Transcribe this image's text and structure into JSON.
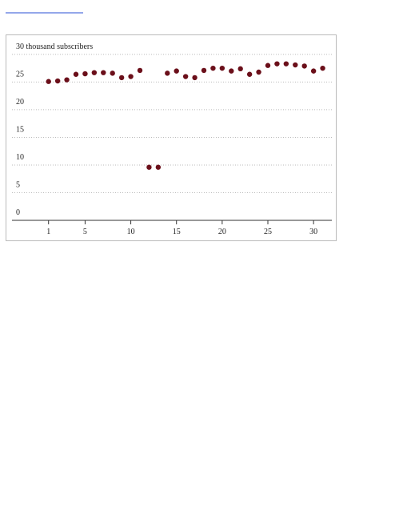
{
  "chart_data": {
    "type": "scatter",
    "x": [
      1,
      2,
      3,
      4,
      5,
      6,
      7,
      8,
      9,
      10,
      11,
      12,
      13,
      14,
      15,
      16,
      17,
      18,
      19,
      20,
      21,
      22,
      23,
      24,
      25,
      26,
      27,
      28,
      29,
      30,
      31
    ],
    "values": [
      25.1,
      25.2,
      25.4,
      26.4,
      26.5,
      26.7,
      26.7,
      26.6,
      25.8,
      26.0,
      27.1,
      9.6,
      9.6,
      26.6,
      27.0,
      26.0,
      25.8,
      27.1,
      27.5,
      27.5,
      27.0,
      27.4,
      26.4,
      26.8,
      28.0,
      28.3,
      28.3,
      28.1,
      27.9,
      27.0,
      27.5
    ],
    "color": "#6b0f1a",
    "xlim": [
      -3,
      32
    ],
    "xticks": [
      1,
      5,
      10,
      15,
      20,
      25,
      30
    ],
    "ylim": [
      0,
      31
    ],
    "yticks": [
      0,
      5,
      10,
      15,
      20,
      25,
      {
        "value": 30,
        "label": "30 thousand subscribers"
      }
    ],
    "grid": true
  }
}
